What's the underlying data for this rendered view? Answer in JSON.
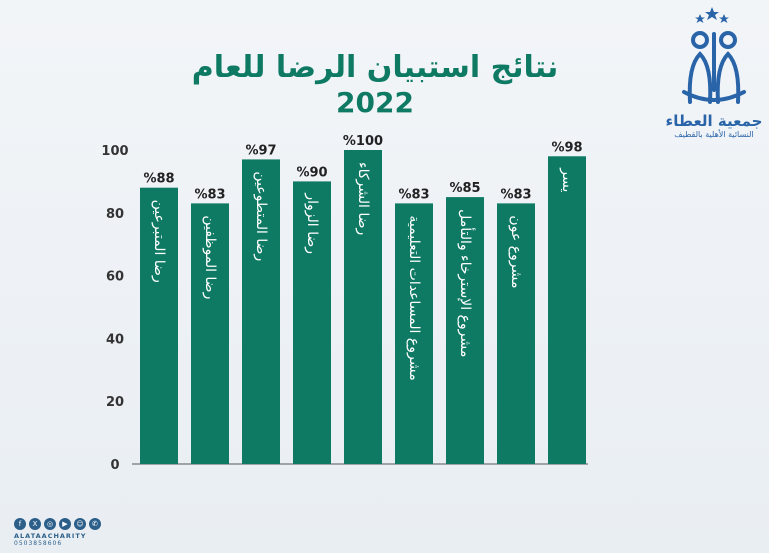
{
  "chart_data": {
    "type": "bar",
    "title": "نتائج استبيان الرضا للعام",
    "subtitle": "2022",
    "categories": [
      "رضا المتبرعين",
      "رضا الموظفين",
      "رضا المتطوعين",
      "رضا الزوار",
      "رضا الشركاء",
      "مشروع المساعدات التعليمية",
      "مشروع الإسترخاء والتأمل",
      "مشروع عون",
      "يسر"
    ],
    "values": [
      88,
      83,
      97,
      90,
      100,
      83,
      85,
      83,
      98
    ],
    "value_labels": [
      "%88",
      "%83",
      "%97",
      "%90",
      "%100",
      "%83",
      "%85",
      "%83",
      "%98"
    ],
    "ylim": [
      0,
      100
    ],
    "yticks": [
      0,
      20,
      40,
      60,
      80,
      100
    ],
    "bar_color": "#0e7a64",
    "grid": false,
    "legend": "none"
  },
  "logo": {
    "name": "جمعية العطاء",
    "subtitle": "النسائية الأهلية بالقطيف",
    "color": "#2a64a8"
  },
  "footer": {
    "handle": "ALATAACHARITY",
    "phone": "0503858606",
    "icons": [
      "facebook-icon",
      "x-icon",
      "instagram-icon",
      "youtube-icon",
      "snapchat-icon",
      "whatsapp-icon"
    ]
  }
}
